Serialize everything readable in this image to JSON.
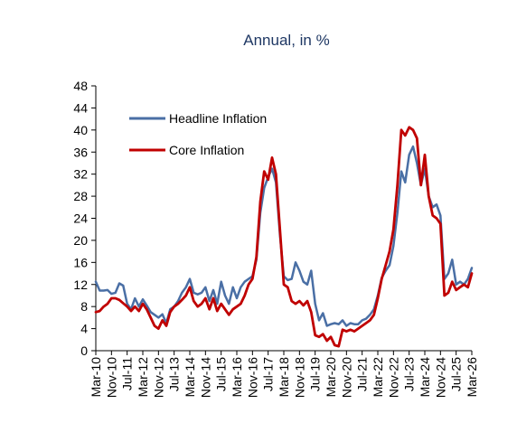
{
  "chart_data": {
    "type": "line",
    "title": "Annual, in %",
    "xlabel": "",
    "ylabel": "",
    "ylim": [
      0,
      48
    ],
    "yticks": [
      0,
      4,
      8,
      12,
      16,
      20,
      24,
      28,
      32,
      36,
      40,
      44,
      48
    ],
    "x_start": "2010-03",
    "x_end": "2026-03",
    "x_tick_labels": [
      "Mar-10",
      "Nov-10",
      "Jul-11",
      "Mar-12",
      "Nov-12",
      "Jul-13",
      "Mar-14",
      "Nov-14",
      "Jul-15",
      "Mar-16",
      "Nov-16",
      "Jul-17",
      "Mar-18",
      "Nov-18",
      "Jul-19",
      "Mar-20",
      "Nov-20",
      "Jul-21",
      "Mar-22",
      "Nov-22",
      "Jul-23",
      "Mar-24",
      "Nov-24",
      "Jul-25",
      "Mar-26"
    ],
    "grid": false,
    "legend_position": "top-left",
    "series": [
      {
        "name": "Headline Inflation",
        "color": "#4A6FA5",
        "points": [
          [
            "2010-03",
            12.5
          ],
          [
            "2010-05",
            10.9
          ],
          [
            "2010-07",
            10.9
          ],
          [
            "2010-09",
            11.0
          ],
          [
            "2010-11",
            10.3
          ],
          [
            "2011-01",
            10.5
          ],
          [
            "2011-03",
            12.2
          ],
          [
            "2011-05",
            11.8
          ],
          [
            "2011-07",
            8.5
          ],
          [
            "2011-09",
            7.5
          ],
          [
            "2011-11",
            9.5
          ],
          [
            "2012-01",
            8.0
          ],
          [
            "2012-03",
            9.3
          ],
          [
            "2012-05",
            8.2
          ],
          [
            "2012-07",
            7.0
          ],
          [
            "2012-09",
            6.5
          ],
          [
            "2012-11",
            6.0
          ],
          [
            "2013-01",
            6.6
          ],
          [
            "2013-03",
            5.0
          ],
          [
            "2013-05",
            7.5
          ],
          [
            "2013-07",
            8.0
          ],
          [
            "2013-09",
            9.0
          ],
          [
            "2013-11",
            10.5
          ],
          [
            "2014-01",
            11.5
          ],
          [
            "2014-03",
            13.0
          ],
          [
            "2014-05",
            10.5
          ],
          [
            "2014-07",
            10.2
          ],
          [
            "2014-09",
            10.5
          ],
          [
            "2014-11",
            11.5
          ],
          [
            "2015-01",
            9.0
          ],
          [
            "2015-03",
            11.0
          ],
          [
            "2015-05",
            8.5
          ],
          [
            "2015-07",
            12.5
          ],
          [
            "2015-09",
            10.0
          ],
          [
            "2015-11",
            8.5
          ],
          [
            "2016-01",
            11.5
          ],
          [
            "2016-03",
            9.5
          ],
          [
            "2016-05",
            11.5
          ],
          [
            "2016-07",
            12.5
          ],
          [
            "2016-09",
            13.0
          ],
          [
            "2016-11",
            13.5
          ],
          [
            "2017-01",
            16.5
          ],
          [
            "2017-03",
            25.0
          ],
          [
            "2017-05",
            29.5
          ],
          [
            "2017-07",
            31.5
          ],
          [
            "2017-09",
            33.0
          ],
          [
            "2017-11",
            30.5
          ],
          [
            "2018-01",
            21.0
          ],
          [
            "2018-03",
            13.5
          ],
          [
            "2018-05",
            12.8
          ],
          [
            "2018-07",
            13.0
          ],
          [
            "2018-09",
            16.0
          ],
          [
            "2018-11",
            14.5
          ],
          [
            "2019-01",
            12.5
          ],
          [
            "2019-03",
            12.0
          ],
          [
            "2019-05",
            14.5
          ],
          [
            "2019-07",
            8.5
          ],
          [
            "2019-09",
            5.5
          ],
          [
            "2019-11",
            6.8
          ],
          [
            "2020-01",
            4.5
          ],
          [
            "2020-03",
            4.8
          ],
          [
            "2020-05",
            5.0
          ],
          [
            "2020-07",
            4.8
          ],
          [
            "2020-09",
            5.5
          ],
          [
            "2020-11",
            4.5
          ],
          [
            "2021-01",
            5.0
          ],
          [
            "2021-03",
            4.8
          ],
          [
            "2021-05",
            4.8
          ],
          [
            "2021-07",
            5.5
          ],
          [
            "2021-09",
            5.8
          ],
          [
            "2021-11",
            6.5
          ],
          [
            "2022-01",
            7.5
          ],
          [
            "2022-03",
            10.0
          ],
          [
            "2022-05",
            13.2
          ],
          [
            "2022-07",
            14.5
          ],
          [
            "2022-09",
            15.5
          ],
          [
            "2022-11",
            19.0
          ],
          [
            "2023-01",
            25.0
          ],
          [
            "2023-03",
            32.5
          ],
          [
            "2023-05",
            30.5
          ],
          [
            "2023-07",
            35.5
          ],
          [
            "2023-09",
            37.0
          ],
          [
            "2023-11",
            34.0
          ],
          [
            "2024-01",
            30.0
          ],
          [
            "2024-03",
            33.0
          ],
          [
            "2024-05",
            28.0
          ],
          [
            "2024-07",
            26.0
          ],
          [
            "2024-09",
            26.5
          ],
          [
            "2024-11",
            24.5
          ],
          [
            "2025-01",
            13.0
          ],
          [
            "2025-03",
            14.0
          ],
          [
            "2025-05",
            16.5
          ],
          [
            "2025-07",
            12.0
          ],
          [
            "2025-09",
            12.5
          ],
          [
            "2025-11",
            12.0
          ],
          [
            "2026-01",
            13.0
          ],
          [
            "2026-03",
            15.0
          ]
        ]
      },
      {
        "name": "Core Inflation",
        "color": "#C00000",
        "points": [
          [
            "2010-03",
            7.0
          ],
          [
            "2010-05",
            7.2
          ],
          [
            "2010-07",
            8.0
          ],
          [
            "2010-09",
            8.5
          ],
          [
            "2010-11",
            9.5
          ],
          [
            "2011-01",
            9.5
          ],
          [
            "2011-03",
            9.2
          ],
          [
            "2011-05",
            8.6
          ],
          [
            "2011-07",
            8.0
          ],
          [
            "2011-09",
            7.2
          ],
          [
            "2011-11",
            8.0
          ],
          [
            "2012-01",
            7.2
          ],
          [
            "2012-03",
            8.5
          ],
          [
            "2012-05",
            7.5
          ],
          [
            "2012-07",
            6.0
          ],
          [
            "2012-09",
            4.5
          ],
          [
            "2012-11",
            4.0
          ],
          [
            "2013-01",
            5.5
          ],
          [
            "2013-03",
            4.5
          ],
          [
            "2013-05",
            7.0
          ],
          [
            "2013-07",
            8.0
          ],
          [
            "2013-09",
            8.5
          ],
          [
            "2013-11",
            9.2
          ],
          [
            "2014-01",
            10.0
          ],
          [
            "2014-03",
            11.5
          ],
          [
            "2014-05",
            9.0
          ],
          [
            "2014-07",
            8.0
          ],
          [
            "2014-09",
            8.5
          ],
          [
            "2014-11",
            9.5
          ],
          [
            "2015-01",
            7.5
          ],
          [
            "2015-03",
            9.5
          ],
          [
            "2015-05",
            7.2
          ],
          [
            "2015-07",
            8.5
          ],
          [
            "2015-09",
            7.5
          ],
          [
            "2015-11",
            6.5
          ],
          [
            "2016-01",
            7.5
          ],
          [
            "2016-03",
            8.0
          ],
          [
            "2016-05",
            8.5
          ],
          [
            "2016-07",
            10.0
          ],
          [
            "2016-09",
            12.0
          ],
          [
            "2016-11",
            13.0
          ],
          [
            "2017-01",
            17.0
          ],
          [
            "2017-03",
            27.0
          ],
          [
            "2017-05",
            32.5
          ],
          [
            "2017-07",
            31.0
          ],
          [
            "2017-09",
            35.0
          ],
          [
            "2017-11",
            32.0
          ],
          [
            "2018-01",
            22.0
          ],
          [
            "2018-03",
            12.0
          ],
          [
            "2018-05",
            11.5
          ],
          [
            "2018-07",
            9.0
          ],
          [
            "2018-09",
            8.5
          ],
          [
            "2018-11",
            9.0
          ],
          [
            "2019-01",
            8.2
          ],
          [
            "2019-03",
            9.0
          ],
          [
            "2019-05",
            7.0
          ],
          [
            "2019-07",
            2.8
          ],
          [
            "2019-09",
            2.5
          ],
          [
            "2019-11",
            3.0
          ],
          [
            "2020-01",
            1.8
          ],
          [
            "2020-03",
            2.5
          ],
          [
            "2020-05",
            1.0
          ],
          [
            "2020-07",
            0.8
          ],
          [
            "2020-09",
            3.8
          ],
          [
            "2020-11",
            3.5
          ],
          [
            "2021-01",
            3.8
          ],
          [
            "2021-03",
            3.5
          ],
          [
            "2021-05",
            4.0
          ],
          [
            "2021-07",
            4.5
          ],
          [
            "2021-09",
            5.0
          ],
          [
            "2021-11",
            5.5
          ],
          [
            "2022-01",
            6.5
          ],
          [
            "2022-03",
            9.5
          ],
          [
            "2022-05",
            13.0
          ],
          [
            "2022-07",
            15.5
          ],
          [
            "2022-09",
            18.0
          ],
          [
            "2022-11",
            22.0
          ],
          [
            "2023-01",
            30.0
          ],
          [
            "2023-03",
            40.0
          ],
          [
            "2023-05",
            39.0
          ],
          [
            "2023-07",
            40.5
          ],
          [
            "2023-09",
            40.0
          ],
          [
            "2023-11",
            38.5
          ],
          [
            "2024-01",
            30.0
          ],
          [
            "2024-03",
            35.5
          ],
          [
            "2024-05",
            28.0
          ],
          [
            "2024-07",
            24.5
          ],
          [
            "2024-09",
            24.0
          ],
          [
            "2024-11",
            23.0
          ],
          [
            "2025-01",
            10.0
          ],
          [
            "2025-03",
            10.5
          ],
          [
            "2025-05",
            12.5
          ],
          [
            "2025-07",
            11.0
          ],
          [
            "2025-09",
            11.5
          ],
          [
            "2025-11",
            12.0
          ],
          [
            "2026-01",
            11.5
          ],
          [
            "2026-03",
            14.0
          ]
        ]
      }
    ]
  }
}
